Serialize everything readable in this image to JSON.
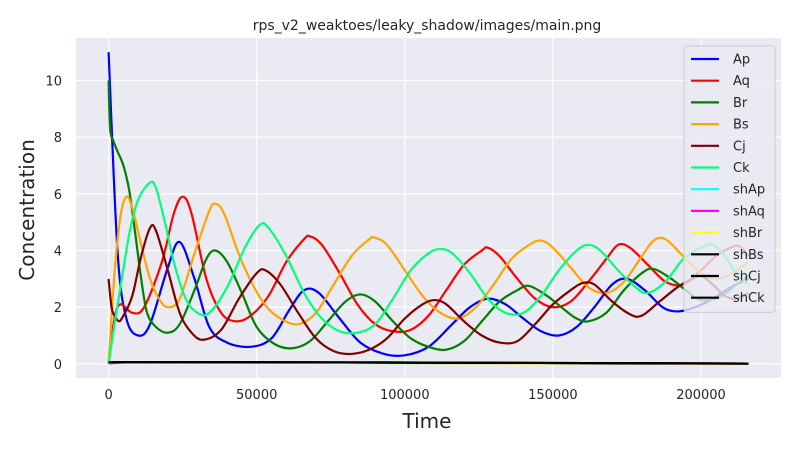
{
  "chart_data": {
    "type": "line",
    "title": "rps_v2_weaktoes/leaky_shadow/images/main.png",
    "xlabel": "Time",
    "ylabel": "Concentration",
    "xlim": [
      -11000,
      227000
    ],
    "ylim": [
      -0.5,
      11.5
    ],
    "x_ticks": [
      0,
      50000,
      100000,
      150000,
      200000
    ],
    "x_tick_labels": [
      "0",
      "50000",
      "100000",
      "150000",
      "200000"
    ],
    "y_ticks": [
      0,
      2,
      4,
      6,
      8,
      10
    ],
    "y_tick_labels": [
      "0",
      "2",
      "4",
      "6",
      "8",
      "10"
    ],
    "grid": true,
    "legend_position": "top-right",
    "x_max": 216000,
    "series": [
      {
        "name": "Ap",
        "color": "#0000ff",
        "initial": 11,
        "points": [
          [
            0,
            11
          ],
          [
            3000,
            4.0
          ],
          [
            6000,
            1.6
          ],
          [
            10000,
            1.0
          ],
          [
            14000,
            1.4
          ],
          [
            20000,
            3.4
          ],
          [
            24000,
            4.3
          ],
          [
            29000,
            3.0
          ],
          [
            34000,
            1.3
          ],
          [
            40000,
            0.75
          ],
          [
            48000,
            0.6
          ],
          [
            55000,
            0.9
          ],
          [
            61000,
            1.9
          ],
          [
            66000,
            2.6
          ],
          [
            71000,
            2.5
          ],
          [
            78000,
            1.6
          ],
          [
            85000,
            0.75
          ],
          [
            93000,
            0.35
          ],
          [
            100000,
            0.3
          ],
          [
            108000,
            0.6
          ],
          [
            116000,
            1.4
          ],
          [
            122000,
            2.0
          ],
          [
            128000,
            2.3
          ],
          [
            134000,
            2.1
          ],
          [
            140000,
            1.6
          ],
          [
            146000,
            1.15
          ],
          [
            152000,
            1.0
          ],
          [
            158000,
            1.3
          ],
          [
            164000,
            2.0
          ],
          [
            170000,
            2.8
          ],
          [
            175000,
            3.0
          ],
          [
            181000,
            2.6
          ],
          [
            187000,
            2.0
          ],
          [
            192000,
            1.85
          ],
          [
            198000,
            2.0
          ],
          [
            204000,
            2.3
          ],
          [
            210000,
            2.7
          ],
          [
            216000,
            3.0
          ]
        ]
      },
      {
        "name": "Aq",
        "color": "#ff0000",
        "initial": 0,
        "points": [
          [
            0,
            0
          ],
          [
            2000,
            1.6
          ],
          [
            4000,
            2.1
          ],
          [
            8000,
            1.8
          ],
          [
            12000,
            2.0
          ],
          [
            18000,
            3.6
          ],
          [
            22000,
            5.3
          ],
          [
            25000,
            5.9
          ],
          [
            28000,
            5.3
          ],
          [
            33000,
            3.0
          ],
          [
            38000,
            1.8
          ],
          [
            43000,
            1.5
          ],
          [
            48000,
            1.7
          ],
          [
            54000,
            2.4
          ],
          [
            60000,
            3.6
          ],
          [
            66000,
            4.4
          ],
          [
            68000,
            4.5
          ],
          [
            72000,
            4.2
          ],
          [
            78000,
            3.2
          ],
          [
            84000,
            2.1
          ],
          [
            90000,
            1.4
          ],
          [
            96000,
            1.15
          ],
          [
            102000,
            1.2
          ],
          [
            108000,
            1.7
          ],
          [
            114000,
            2.6
          ],
          [
            120000,
            3.5
          ],
          [
            126000,
            4.0
          ],
          [
            128000,
            4.1
          ],
          [
            132000,
            3.8
          ],
          [
            138000,
            3.0
          ],
          [
            144000,
            2.3
          ],
          [
            150000,
            2.0
          ],
          [
            156000,
            2.2
          ],
          [
            162000,
            2.9
          ],
          [
            168000,
            3.7
          ],
          [
            172000,
            4.2
          ],
          [
            176000,
            4.1
          ],
          [
            182000,
            3.5
          ],
          [
            188000,
            2.9
          ],
          [
            194000,
            2.8
          ],
          [
            200000,
            3.3
          ],
          [
            205000,
            3.8
          ],
          [
            210000,
            4.1
          ],
          [
            213000,
            4.15
          ],
          [
            216000,
            3.8
          ]
        ]
      },
      {
        "name": "Br",
        "color": "#008000",
        "initial": 10,
        "points": [
          [
            0,
            10
          ],
          [
            500,
            8.3
          ],
          [
            1500,
            7.9
          ],
          [
            3000,
            7.5
          ],
          [
            5000,
            7.0
          ],
          [
            7000,
            6.1
          ],
          [
            9000,
            4.6
          ],
          [
            11000,
            3.0
          ],
          [
            13000,
            1.8
          ],
          [
            16000,
            1.3
          ],
          [
            20000,
            1.1
          ],
          [
            24000,
            1.4
          ],
          [
            29000,
            2.6
          ],
          [
            33000,
            3.7
          ],
          [
            36000,
            4.0
          ],
          [
            40000,
            3.6
          ],
          [
            45000,
            2.5
          ],
          [
            50000,
            1.3
          ],
          [
            56000,
            0.7
          ],
          [
            62000,
            0.55
          ],
          [
            68000,
            0.8
          ],
          [
            74000,
            1.5
          ],
          [
            80000,
            2.2
          ],
          [
            85000,
            2.45
          ],
          [
            90000,
            2.2
          ],
          [
            96000,
            1.5
          ],
          [
            102000,
            0.9
          ],
          [
            108000,
            0.6
          ],
          [
            114000,
            0.5
          ],
          [
            120000,
            0.8
          ],
          [
            126000,
            1.5
          ],
          [
            132000,
            2.2
          ],
          [
            138000,
            2.6
          ],
          [
            142000,
            2.75
          ],
          [
            148000,
            2.4
          ],
          [
            154000,
            1.9
          ],
          [
            158000,
            1.6
          ],
          [
            162000,
            1.5
          ],
          [
            168000,
            1.8
          ],
          [
            174000,
            2.6
          ],
          [
            180000,
            3.2
          ],
          [
            184000,
            3.35
          ],
          [
            190000,
            3.0
          ],
          [
            196000,
            2.5
          ],
          [
            200000,
            2.25
          ],
          [
            206000,
            2.35
          ],
          [
            212000,
            2.8
          ],
          [
            216000,
            3.1
          ]
        ]
      },
      {
        "name": "Bs",
        "color": "#ffa500",
        "initial": 0,
        "points": [
          [
            0,
            0
          ],
          [
            2000,
            3.2
          ],
          [
            4000,
            5.2
          ],
          [
            6000,
            5.9
          ],
          [
            8000,
            5.5
          ],
          [
            11000,
            4.2
          ],
          [
            14000,
            3.0
          ],
          [
            17000,
            2.3
          ],
          [
            20000,
            2.0
          ],
          [
            24000,
            2.3
          ],
          [
            29000,
            3.9
          ],
          [
            34000,
            5.4
          ],
          [
            36000,
            5.65
          ],
          [
            39000,
            5.3
          ],
          [
            45000,
            3.6
          ],
          [
            52000,
            2.2
          ],
          [
            58000,
            1.6
          ],
          [
            64000,
            1.4
          ],
          [
            70000,
            1.8
          ],
          [
            76000,
            2.8
          ],
          [
            82000,
            3.8
          ],
          [
            88000,
            4.4
          ],
          [
            90000,
            4.45
          ],
          [
            94000,
            4.2
          ],
          [
            100000,
            3.3
          ],
          [
            106000,
            2.4
          ],
          [
            112000,
            1.8
          ],
          [
            118000,
            1.6
          ],
          [
            124000,
            2.0
          ],
          [
            130000,
            2.8
          ],
          [
            136000,
            3.7
          ],
          [
            142000,
            4.2
          ],
          [
            146000,
            4.35
          ],
          [
            150000,
            4.1
          ],
          [
            156000,
            3.4
          ],
          [
            162000,
            2.7
          ],
          [
            168000,
            2.5
          ],
          [
            174000,
            2.9
          ],
          [
            180000,
            3.8
          ],
          [
            184000,
            4.35
          ],
          [
            188000,
            4.4
          ],
          [
            194000,
            3.8
          ],
          [
            200000,
            3.2
          ],
          [
            206000,
            3.0
          ],
          [
            212000,
            3.3
          ],
          [
            216000,
            3.6
          ]
        ]
      },
      {
        "name": "Cj",
        "color": "#800000",
        "initial": 3,
        "points": [
          [
            0,
            3
          ],
          [
            1000,
            2.0
          ],
          [
            2000,
            1.7
          ],
          [
            3500,
            1.5
          ],
          [
            5000,
            1.7
          ],
          [
            8000,
            2.4
          ],
          [
            11000,
            3.8
          ],
          [
            14000,
            4.8
          ],
          [
            16000,
            4.7
          ],
          [
            20000,
            3.3
          ],
          [
            24000,
            1.8
          ],
          [
            28000,
            1.1
          ],
          [
            32000,
            0.85
          ],
          [
            38000,
            1.2
          ],
          [
            44000,
            2.3
          ],
          [
            50000,
            3.2
          ],
          [
            53000,
            3.3
          ],
          [
            58000,
            2.8
          ],
          [
            64000,
            1.8
          ],
          [
            70000,
            0.9
          ],
          [
            76000,
            0.45
          ],
          [
            82000,
            0.35
          ],
          [
            88000,
            0.5
          ],
          [
            94000,
            0.9
          ],
          [
            100000,
            1.6
          ],
          [
            106000,
            2.1
          ],
          [
            110000,
            2.25
          ],
          [
            114000,
            2.1
          ],
          [
            120000,
            1.5
          ],
          [
            126000,
            1.0
          ],
          [
            132000,
            0.75
          ],
          [
            138000,
            0.8
          ],
          [
            144000,
            1.4
          ],
          [
            150000,
            2.1
          ],
          [
            156000,
            2.6
          ],
          [
            160000,
            2.85
          ],
          [
            164000,
            2.8
          ],
          [
            170000,
            2.2
          ],
          [
            176000,
            1.75
          ],
          [
            180000,
            1.7
          ],
          [
            186000,
            2.2
          ],
          [
            192000,
            2.7
          ],
          [
            196000,
            2.95
          ],
          [
            200000,
            3.1
          ],
          [
            204000,
            2.8
          ],
          [
            208000,
            2.4
          ],
          [
            212000,
            2.3
          ],
          [
            216000,
            2.5
          ]
        ]
      },
      {
        "name": "Ck",
        "color": "#00ff7f",
        "initial": 0,
        "points": [
          [
            0,
            0
          ],
          [
            2000,
            1.4
          ],
          [
            4000,
            2.7
          ],
          [
            7000,
            4.6
          ],
          [
            10000,
            5.8
          ],
          [
            14000,
            6.4
          ],
          [
            16000,
            6.2
          ],
          [
            19000,
            5.0
          ],
          [
            22000,
            3.6
          ],
          [
            26000,
            2.3
          ],
          [
            30000,
            1.8
          ],
          [
            34000,
            1.8
          ],
          [
            40000,
            2.7
          ],
          [
            46000,
            4.1
          ],
          [
            51000,
            4.9
          ],
          [
            54000,
            4.8
          ],
          [
            60000,
            3.8
          ],
          [
            66000,
            2.5
          ],
          [
            72000,
            1.6
          ],
          [
            78000,
            1.15
          ],
          [
            84000,
            1.1
          ],
          [
            90000,
            1.4
          ],
          [
            96000,
            2.3
          ],
          [
            102000,
            3.3
          ],
          [
            108000,
            3.9
          ],
          [
            112000,
            4.05
          ],
          [
            116000,
            3.9
          ],
          [
            122000,
            3.2
          ],
          [
            128000,
            2.3
          ],
          [
            134000,
            1.8
          ],
          [
            140000,
            1.8
          ],
          [
            146000,
            2.4
          ],
          [
            152000,
            3.3
          ],
          [
            158000,
            4.0
          ],
          [
            162000,
            4.2
          ],
          [
            166000,
            4.0
          ],
          [
            172000,
            3.3
          ],
          [
            178000,
            2.7
          ],
          [
            182000,
            2.5
          ],
          [
            188000,
            2.9
          ],
          [
            194000,
            3.7
          ],
          [
            200000,
            4.1
          ],
          [
            204000,
            4.2
          ],
          [
            208000,
            3.8
          ],
          [
            212000,
            3.2
          ],
          [
            216000,
            2.8
          ]
        ]
      },
      {
        "name": "shAp",
        "color": "#00ffff",
        "points": [
          [
            0,
            0.05
          ],
          [
            216000,
            0.0
          ]
        ]
      },
      {
        "name": "shAq",
        "color": "#ff00ff",
        "points": [
          [
            0,
            0.02
          ],
          [
            8000,
            0.06
          ],
          [
            12000,
            0.05
          ],
          [
            45000,
            0.05
          ],
          [
            48000,
            0.05
          ],
          [
            216000,
            0.0
          ]
        ]
      },
      {
        "name": "shBr",
        "color": "#ffff00",
        "points": [
          [
            0,
            0.05
          ],
          [
            216000,
            0.0
          ]
        ]
      },
      {
        "name": "shBs",
        "color": "#000000",
        "points": [
          [
            0,
            0.06
          ],
          [
            30000,
            0.06
          ],
          [
            80000,
            0.05
          ],
          [
            216000,
            0.01
          ]
        ]
      },
      {
        "name": "shCj",
        "color": "#000000",
        "points": [
          [
            0,
            0.06
          ],
          [
            30000,
            0.06
          ],
          [
            80000,
            0.05
          ],
          [
            216000,
            0.01
          ]
        ]
      },
      {
        "name": "shCk",
        "color": "#000000",
        "points": [
          [
            0,
            0.06
          ],
          [
            30000,
            0.06
          ],
          [
            80000,
            0.05
          ],
          [
            216000,
            0.01
          ]
        ]
      }
    ]
  }
}
